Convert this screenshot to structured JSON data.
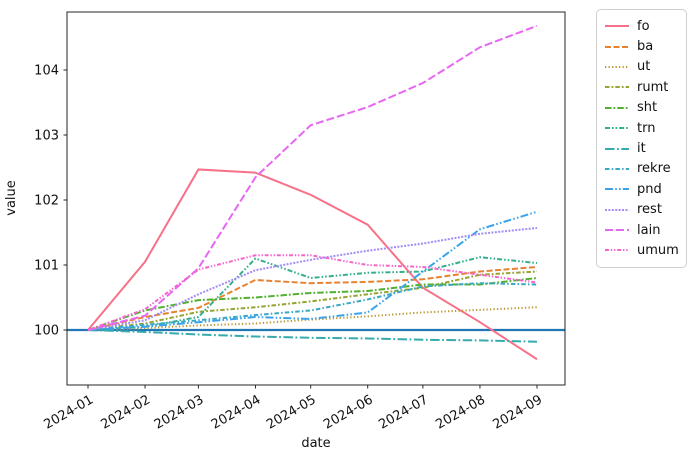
{
  "chart_data": {
    "type": "line",
    "title": "",
    "xlabel": "date",
    "ylabel": "value",
    "x": [
      "2024-01",
      "2024-02",
      "2024-03",
      "2024-04",
      "2024-05",
      "2024-06",
      "2024-07",
      "2024-08",
      "2024-09"
    ],
    "x_day_offsets": [
      0,
      31,
      60,
      91,
      121,
      152,
      182,
      213,
      244
    ],
    "yticks": [
      100,
      101,
      102,
      103,
      104
    ],
    "ylim": [
      99.15,
      104.89
    ],
    "grid": false,
    "legend_position": "outside-upper-right",
    "reference_line": {
      "y": 100,
      "color": "#2077b4",
      "style": "solid"
    },
    "series": [
      {
        "name": "fo",
        "color": "#f77189",
        "dash": "solid",
        "values": [
          100.0,
          101.05,
          102.47,
          102.42,
          102.08,
          101.62,
          100.65,
          100.12,
          99.55
        ]
      },
      {
        "name": "ba",
        "color": "#e68332",
        "dash": "dashed",
        "values": [
          100.0,
          100.2,
          100.34,
          100.77,
          100.72,
          100.74,
          100.78,
          100.9,
          100.97
        ]
      },
      {
        "name": "ut",
        "color": "#bb9832",
        "dash": "dotted",
        "values": [
          100.0,
          100.03,
          100.07,
          100.1,
          100.16,
          100.21,
          100.27,
          100.31,
          100.35
        ]
      },
      {
        "name": "rumt",
        "color": "#97a431",
        "dash": "dash-short-dash",
        "values": [
          100.0,
          100.1,
          100.28,
          100.35,
          100.44,
          100.55,
          100.65,
          100.85,
          100.9
        ]
      },
      {
        "name": "sht",
        "color": "#50b131",
        "dash": "dash-dot",
        "values": [
          100.0,
          100.3,
          100.46,
          100.5,
          100.57,
          100.6,
          100.7,
          100.7,
          100.8
        ]
      },
      {
        "name": "trn",
        "color": "#34af8d",
        "dash": "dash-dot-dot",
        "values": [
          100.0,
          100.05,
          100.2,
          101.1,
          100.8,
          100.88,
          100.9,
          101.12,
          101.03
        ]
      },
      {
        "name": "it",
        "color": "#36abae",
        "dash": "long-dash-dot",
        "values": [
          100.0,
          99.97,
          99.93,
          99.9,
          99.88,
          99.87,
          99.85,
          99.84,
          99.82
        ]
      },
      {
        "name": "rekre",
        "color": "#38a8c5",
        "dash": "dash-dot-short",
        "values": [
          100.0,
          100.08,
          100.15,
          100.23,
          100.3,
          100.47,
          100.67,
          100.72,
          100.7
        ]
      },
      {
        "name": "pnd",
        "color": "#3ba3ec",
        "dash": "long-dash-dot-dot",
        "values": [
          100.0,
          100.05,
          100.12,
          100.2,
          100.17,
          100.27,
          100.9,
          101.55,
          101.82
        ]
      },
      {
        "name": "rest",
        "color": "#a48cf4",
        "dash": "fine-dotted",
        "values": [
          100.0,
          100.15,
          100.55,
          100.92,
          101.08,
          101.22,
          101.33,
          101.48,
          101.57
        ]
      },
      {
        "name": "lain",
        "color": "#e866f4",
        "dash": "long-dashed",
        "values": [
          100.0,
          100.22,
          100.95,
          102.35,
          103.15,
          103.43,
          103.8,
          104.35,
          104.68
        ]
      },
      {
        "name": "umum",
        "color": "#f565cc",
        "dash": "dash-dot-dot-short",
        "values": [
          100.0,
          100.32,
          100.93,
          101.15,
          101.15,
          101.0,
          100.97,
          100.85,
          100.73
        ]
      }
    ]
  }
}
